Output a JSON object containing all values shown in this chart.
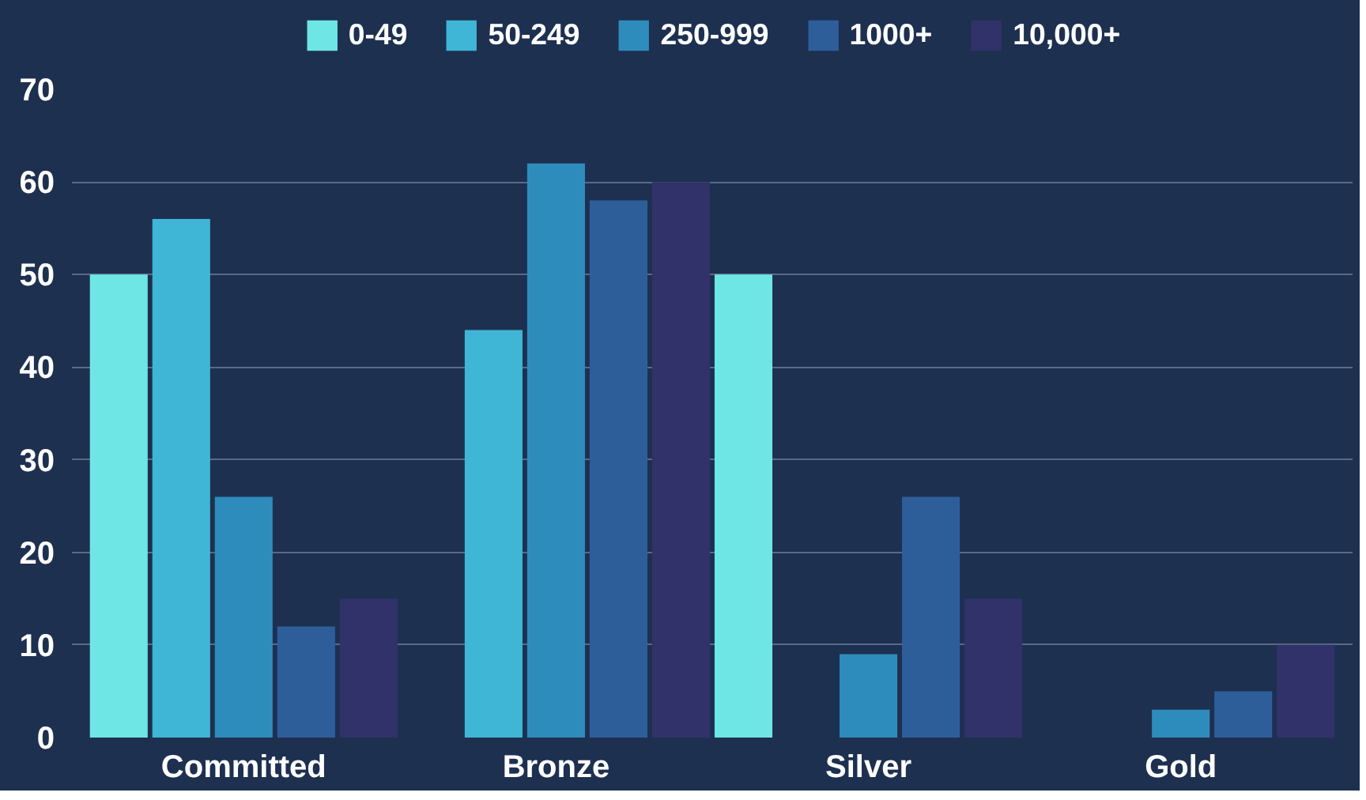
{
  "chart_data": {
    "type": "bar",
    "categories": [
      "Committed",
      "Bronze",
      "Silver",
      "Gold"
    ],
    "series": [
      {
        "name": "0-49",
        "color": "#6ee6e6",
        "values": [
          50,
          0,
          50,
          0
        ]
      },
      {
        "name": "50-249",
        "color": "#40b6d6",
        "values": [
          56,
          44,
          0,
          0
        ]
      },
      {
        "name": "250-999",
        "color": "#2e8cbc",
        "values": [
          26,
          62,
          9,
          3
        ]
      },
      {
        "name": "1000+",
        "color": "#2e5e9a",
        "values": [
          12,
          58,
          26,
          5
        ]
      },
      {
        "name": "10,000+",
        "color": "#31326a",
        "values": [
          15,
          60,
          15,
          10
        ]
      }
    ],
    "ylim": [
      0,
      70
    ],
    "yticks": [
      0,
      10,
      20,
      30,
      40,
      50,
      60,
      70
    ],
    "grid": "y",
    "legend": "top"
  }
}
